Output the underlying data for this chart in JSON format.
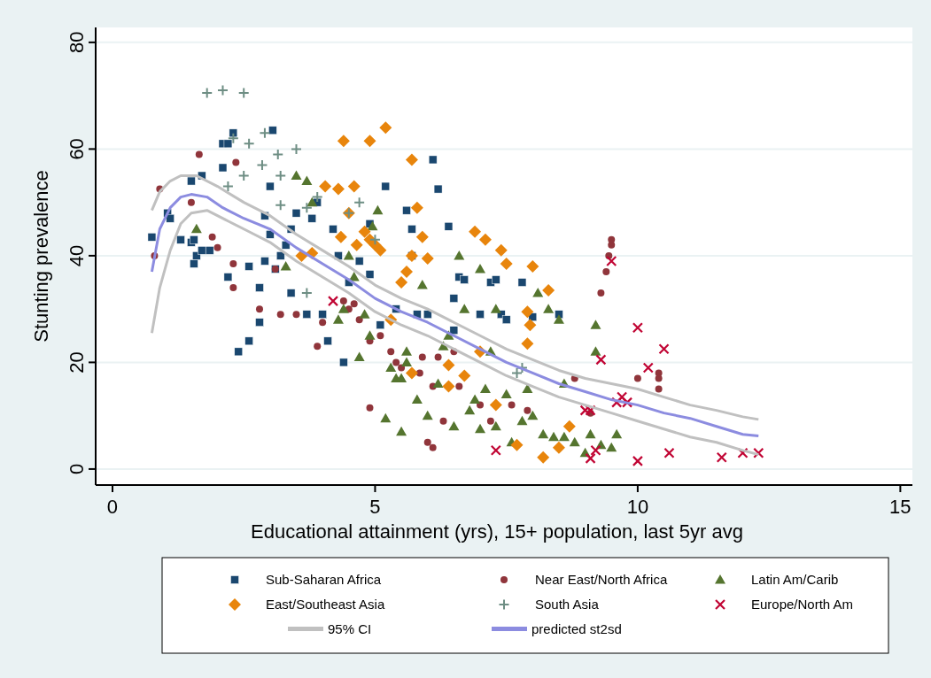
{
  "chart_data": {
    "type": "scatter",
    "xlabel": "Educational attainment (yrs), 15+ population, last 5yr avg",
    "ylabel": "Stunting prevalence",
    "xlim": [
      -0.32,
      15.23
    ],
    "ylim": [
      -3,
      82.8
    ],
    "xticks": [
      0,
      5,
      10,
      15
    ],
    "yticks": [
      0,
      20,
      40,
      60,
      80
    ],
    "grid": "y",
    "legend": "bottom",
    "series": [
      {
        "name": "Sub-Saharan Africa",
        "color": "#1a476f",
        "marker": "square",
        "x": [
          0.75,
          1.05,
          1.1,
          1.3,
          1.5,
          1.55,
          1.6,
          1.55,
          1.7,
          1.85,
          1.5,
          1.7,
          2.1,
          2.2,
          2.3,
          2.1,
          2.2,
          2.4,
          2.6,
          2.6,
          2.8,
          2.8,
          2.9,
          2.9,
          3,
          3.05,
          3.0,
          3.1,
          3.2,
          3.3,
          3.4,
          3.4,
          3.5,
          3.7,
          3.8,
          3.9,
          4,
          4.1,
          4.2,
          4.3,
          4.4,
          4.5,
          4.7,
          4.9,
          4.9,
          5.2,
          5.1,
          5.4,
          5.6,
          5.7,
          5.7,
          5.8,
          6.0,
          6.1,
          6.2,
          6.4,
          6.5,
          6.5,
          6.6,
          6.7,
          7,
          7.2,
          7.3,
          7.4,
          7.5,
          7.8,
          8.0,
          8.5
        ],
        "values": [
          43.5,
          48,
          47,
          43,
          42.5,
          38.5,
          40,
          43,
          41,
          41,
          54,
          55,
          61,
          61,
          63,
          56.5,
          36,
          22,
          24,
          38,
          34,
          27.5,
          39,
          47.5,
          53,
          63.5,
          44,
          37.5,
          40,
          42,
          33,
          45,
          48,
          29,
          47,
          50,
          29,
          24,
          45,
          40,
          20,
          35,
          39,
          46,
          36.5,
          53,
          27,
          30,
          48.5,
          40,
          45,
          29,
          29,
          58,
          52.5,
          45.5,
          32,
          26,
          36,
          35.5,
          29,
          35,
          35.5,
          29,
          28,
          35,
          28.5,
          29
        ]
      },
      {
        "name": "Near East/North Africa",
        "color": "#90353b",
        "marker": "circle",
        "x": [
          0.8,
          0.9,
          1.5,
          1.65,
          1.9,
          2.0,
          2.3,
          2.35,
          2.3,
          2.8,
          3.1,
          3.2,
          3.5,
          3.9,
          4.0,
          4.4,
          4.5,
          4.6,
          4.7,
          4.9,
          4.9,
          5.1,
          5.3,
          5.4,
          5.5,
          5.85,
          5.9,
          6.0,
          6.1,
          6.1,
          6.3,
          6.5,
          6.2,
          6.6,
          7.0,
          7.2,
          7.6,
          7.9,
          8.8,
          9.3,
          9.4,
          9.45,
          9.5,
          9.5,
          10.0,
          10.4,
          10.4,
          10.4,
          9.1
        ],
        "values": [
          40,
          52.5,
          50,
          59,
          43.5,
          41.5,
          34,
          57.5,
          38.5,
          30,
          37.5,
          29,
          29,
          23,
          27.5,
          31.5,
          30,
          31,
          28,
          11.5,
          24,
          25,
          22,
          20,
          19,
          18,
          21,
          5,
          4,
          15.5,
          9,
          22,
          21,
          15.5,
          12,
          9,
          12,
          11,
          17,
          33,
          37,
          40,
          42,
          43,
          17,
          18,
          17,
          15,
          10.5
        ]
      },
      {
        "name": "Latin Am/Carib",
        "color": "#55752f",
        "marker": "triangle",
        "x": [
          1.6,
          3.3,
          3.5,
          3.7,
          3.8,
          4.3,
          4.4,
          4.5,
          4.6,
          4.8,
          4.9,
          4.95,
          5.05,
          5.2,
          5.3,
          5.4,
          5.5,
          5.6,
          5.5,
          5.6,
          5.8,
          5.9,
          6.0,
          6.2,
          6.3,
          6.5,
          6.6,
          6.7,
          6.8,
          6.9,
          7.0,
          7.0,
          7.1,
          7.2,
          7.3,
          7.3,
          7.5,
          7.6,
          7.8,
          7.9,
          8.0,
          8.1,
          8.2,
          8.3,
          8.4,
          8.5,
          8.6,
          8.8,
          9.0,
          9.1,
          9.2,
          9.2,
          9.3,
          9.5,
          9.6,
          8.6,
          6.4,
          4.7
        ],
        "values": [
          45,
          38,
          55,
          54,
          50,
          28,
          30,
          40,
          36,
          29,
          25,
          45.5,
          48.5,
          9.5,
          19,
          17,
          17,
          20,
          7,
          22,
          13,
          34.5,
          10,
          16,
          23,
          8,
          40,
          30,
          11,
          13,
          37.5,
          7.5,
          15,
          22,
          8,
          30,
          14,
          5,
          9,
          15,
          10,
          33,
          6.5,
          30,
          6,
          28,
          6,
          5,
          3,
          6.5,
          27,
          22,
          4.5,
          4,
          6.5,
          16,
          25,
          21
        ]
      },
      {
        "name": "East/Southeast Asia",
        "color": "#e8850c",
        "marker": "diamond",
        "x": [
          3.6,
          3.8,
          4.05,
          4.3,
          4.4,
          4.35,
          4.5,
          4.6,
          4.65,
          4.8,
          4.9,
          4.9,
          5.0,
          5.1,
          5.2,
          5.3,
          5.5,
          5.6,
          5.7,
          5.7,
          5.8,
          5.9,
          6.0,
          5.7,
          6.4,
          6.4,
          6.7,
          6.9,
          7.0,
          7.1,
          7.3,
          7.4,
          7.5,
          7.7,
          7.9,
          7.9,
          7.95,
          8.0,
          8.2,
          8.3,
          8.7,
          8.5
        ],
        "values": [
          40,
          40.5,
          53,
          52.5,
          61.5,
          43.5,
          48,
          53,
          42,
          44.5,
          43,
          61.5,
          42,
          41,
          64,
          28,
          35,
          37,
          58,
          40,
          49,
          43.5,
          39.5,
          18,
          15.5,
          19.5,
          17.5,
          44.5,
          22,
          43,
          12,
          41,
          38.5,
          4.5,
          29.5,
          23.5,
          27,
          38,
          2.2,
          33.5,
          8,
          4
        ]
      },
      {
        "name": "South Asia",
        "color": "#6e8e84",
        "marker": "plus",
        "x": [
          1.8,
          2.1,
          2.5,
          2.2,
          2.3,
          2.6,
          2.85,
          2.9,
          3.15,
          3.2,
          3.5,
          3.7,
          3.9,
          4.5,
          4.7,
          5.0,
          2.5,
          3.7,
          7.7,
          7.8,
          3.2
        ],
        "values": [
          70.5,
          71,
          70.5,
          53,
          62,
          61,
          57,
          63,
          59,
          55,
          60,
          49,
          51,
          48,
          50,
          43,
          55,
          33,
          18,
          19,
          49.5
        ]
      },
      {
        "name": "Europe/North Am",
        "color": "#c10534",
        "marker": "cross",
        "x": [
          4.2,
          7.3,
          9.0,
          9.1,
          9.1,
          9.2,
          9.3,
          9.5,
          9.6,
          9.7,
          9.8,
          10.0,
          10.0,
          10.2,
          10.5,
          10.6,
          11.6,
          12.0,
          12.3
        ],
        "values": [
          31.5,
          3.5,
          11,
          11,
          2,
          3.5,
          20.5,
          39,
          12.5,
          13.5,
          12.5,
          1.5,
          26.5,
          19,
          22.5,
          3,
          2.2,
          3,
          3
        ]
      },
      {
        "name": "95% CI",
        "type": "line",
        "color": "#c0c0c0",
        "marker": "none",
        "x": [
          0.75,
          0.9,
          1.1,
          1.3,
          1.6,
          2,
          2.5,
          3,
          3.5,
          4,
          4.5,
          5,
          5.5,
          6,
          6.5,
          7,
          7.5,
          8,
          8.5,
          9,
          9.5,
          10,
          10.5,
          11,
          11.5,
          12,
          12.3
        ],
        "values": [
          48.5,
          52,
          54,
          55,
          55,
          53,
          50,
          47.5,
          44,
          41,
          38,
          34.5,
          32,
          30,
          27.5,
          25,
          22.5,
          20.5,
          18.5,
          17,
          16,
          15,
          13.5,
          12,
          11,
          9.8,
          9.3
        ]
      },
      {
        "type": "line",
        "color": "#c0c0c0",
        "marker": "none",
        "x": [
          0.75,
          0.9,
          1.1,
          1.3,
          1.5,
          1.8,
          2.2,
          2.6,
          3,
          3.5,
          4,
          4.5,
          5,
          5.5,
          6,
          6.5,
          7,
          7.5,
          8,
          8.5,
          9,
          9.5,
          10,
          10.5,
          11,
          11.5,
          12,
          12.3
        ],
        "values": [
          25.5,
          34,
          41,
          46,
          48,
          48.5,
          46.5,
          44.5,
          42.5,
          39,
          36,
          33,
          29.5,
          27,
          25,
          22.5,
          20,
          17.5,
          15.5,
          13.5,
          12,
          10.5,
          9,
          7.5,
          6,
          5,
          3.5,
          2.7
        ]
      },
      {
        "name": "predicted st2sd",
        "type": "line",
        "color": "#8c8ce0",
        "marker": "none",
        "x": [
          0.75,
          0.9,
          1.1,
          1.3,
          1.5,
          1.8,
          2.1,
          2.5,
          3,
          3.5,
          4,
          4.5,
          5,
          5.5,
          6,
          6.5,
          7,
          7.5,
          8,
          8.5,
          9,
          9.5,
          10,
          10.5,
          11,
          11.5,
          12,
          12.3
        ],
        "values": [
          37,
          45,
          49,
          51,
          51.5,
          51,
          49,
          47,
          45,
          41.5,
          38.5,
          35.5,
          32,
          29.5,
          27.5,
          25,
          22.5,
          20,
          18,
          16,
          14.5,
          13,
          12,
          10.5,
          9.5,
          8,
          6.5,
          6.2
        ]
      }
    ]
  }
}
